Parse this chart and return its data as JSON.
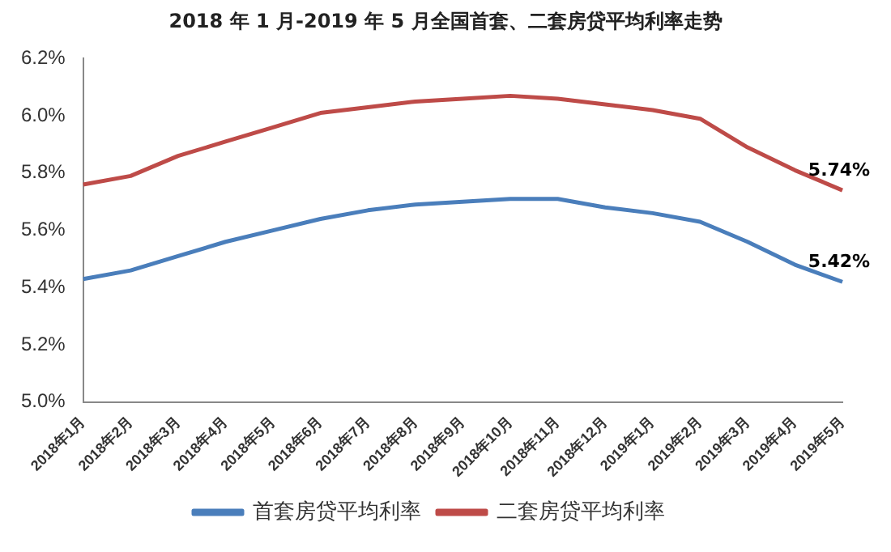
{
  "chart_data": {
    "type": "line",
    "title": "2018 年 1 月-2019 年 5 月全国首套、二套房贷平均利率走势",
    "categories": [
      "2018年1月",
      "2018年2月",
      "2018年3月",
      "2018年4月",
      "2018年5月",
      "2018年6月",
      "2018年7月",
      "2018年8月",
      "2018年9月",
      "2018年10月",
      "2018年11月",
      "2018年12月",
      "2019年1月",
      "2019年2月",
      "2019年3月",
      "2019年4月",
      "2019年5月"
    ],
    "series": [
      {
        "name": "首套房贷平均利率",
        "color": "#4a7ebb",
        "values": [
          5.43,
          5.46,
          5.51,
          5.56,
          5.6,
          5.64,
          5.67,
          5.69,
          5.7,
          5.71,
          5.71,
          5.68,
          5.66,
          5.63,
          5.56,
          5.48,
          5.42
        ],
        "value_labels": [
          null,
          null,
          null,
          null,
          null,
          null,
          null,
          null,
          null,
          null,
          null,
          null,
          null,
          null,
          null,
          null,
          "5.42%"
        ]
      },
      {
        "name": "二套房贷平均利率",
        "color": "#be4b48",
        "values": [
          5.76,
          5.79,
          5.86,
          5.91,
          5.96,
          6.01,
          6.03,
          6.05,
          6.06,
          6.07,
          6.06,
          6.04,
          6.02,
          5.99,
          5.89,
          5.81,
          5.74
        ],
        "value_labels": [
          null,
          null,
          null,
          null,
          null,
          null,
          null,
          null,
          null,
          null,
          null,
          null,
          null,
          null,
          null,
          null,
          "5.74%"
        ]
      }
    ],
    "ylim": [
      5.0,
      6.2
    ],
    "yticks": [
      {
        "value": 5.0,
        "label": "5.0%"
      },
      {
        "value": 5.2,
        "label": "5.2%"
      },
      {
        "value": 5.4,
        "label": "5.4%"
      },
      {
        "value": 5.6,
        "label": "5.6%"
      },
      {
        "value": 5.8,
        "label": "5.8%"
      },
      {
        "value": 6.0,
        "label": "6.0%"
      },
      {
        "value": 6.2,
        "label": "6.2%"
      }
    ],
    "grid": false,
    "legend": "bottom",
    "marker": "none",
    "line_style": "solid"
  }
}
